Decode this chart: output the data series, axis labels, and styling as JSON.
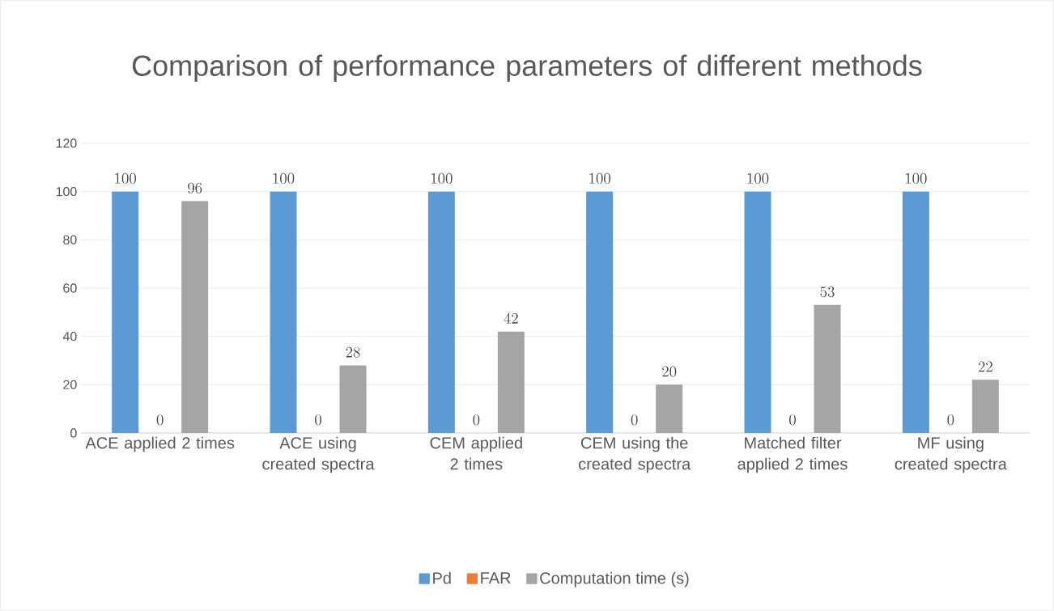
{
  "chart_data": {
    "type": "bar",
    "title": "Comparison of performance parameters of different methods",
    "categories": [
      "ACE applied 2 times",
      "ACE using created spectra",
      "CEM applied 2 times",
      "CEM using the created spectra",
      "Matched filter applied 2 times",
      "MF using created spectra"
    ],
    "series": [
      {
        "name": "Pd",
        "color": "#5b9bd5",
        "values": [
          100,
          100,
          100,
          100,
          100,
          100
        ]
      },
      {
        "name": "FAR",
        "color": "#ed7d31",
        "values": [
          0,
          0,
          0,
          0,
          0,
          0
        ]
      },
      {
        "name": "Computation time (s)",
        "color": "#a5a5a5",
        "values": [
          96,
          28,
          42,
          20,
          53,
          22
        ]
      }
    ],
    "ylim": [
      0,
      120
    ],
    "yticks": [
      0,
      20,
      40,
      60,
      80,
      100,
      120
    ],
    "grid": "y",
    "legend": "bottom",
    "data_labels": true
  }
}
